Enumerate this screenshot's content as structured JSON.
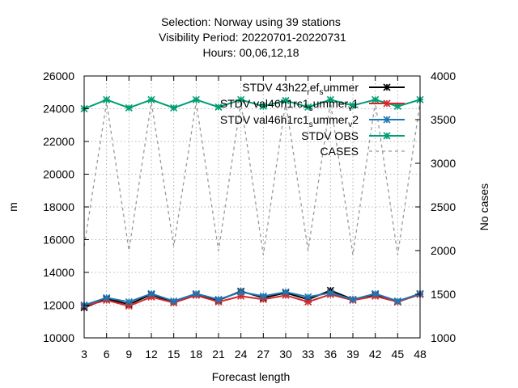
{
  "chart_data": {
    "type": "line",
    "title_lines": [
      "Selection: Norway using    39 stations",
      "Visibility   Period: 20220701-20220731",
      "Hours:  00,06,12,18"
    ],
    "xlabel": "Forecast length",
    "ylabel": "m",
    "y2label": "No cases",
    "xlim": [
      3,
      48
    ],
    "ylim": [
      10000,
      26000
    ],
    "y2lim": [
      1000,
      4000
    ],
    "x_ticks": [
      3,
      6,
      9,
      12,
      15,
      18,
      21,
      24,
      27,
      30,
      33,
      36,
      39,
      42,
      45,
      48
    ],
    "y_ticks": [
      10000,
      12000,
      14000,
      16000,
      18000,
      20000,
      22000,
      24000,
      26000
    ],
    "y2_ticks": [
      1000,
      1500,
      2000,
      2500,
      3000,
      3500,
      4000
    ],
    "grid": true,
    "legend_position": "top-right",
    "x": [
      3,
      6,
      9,
      12,
      15,
      18,
      21,
      24,
      27,
      30,
      33,
      36,
      39,
      42,
      45,
      48
    ],
    "series": [
      {
        "name": "STDV 43h22_ref_summer",
        "legend_main": "STDV 43h22",
        "legend_parts": [
          [
            "sub",
            "r"
          ],
          [
            "main",
            "ef"
          ],
          [
            "sub",
            "s"
          ],
          [
            "main",
            "ummer"
          ]
        ],
        "color": "#000000",
        "axis": "y1",
        "values": [
          11850,
          12400,
          12050,
          12650,
          12150,
          12650,
          12300,
          12850,
          12450,
          12750,
          12350,
          12900,
          12350,
          12650,
          12200,
          12700
        ]
      },
      {
        "name": "STDV val46h1rc1_summer_v1",
        "legend_main": "STDV val46h1rc1",
        "legend_parts": [
          [
            "sub",
            "s"
          ],
          [
            "main",
            "ummer"
          ],
          [
            "sub",
            "v"
          ],
          [
            "main",
            "1"
          ]
        ],
        "color": "#d62728",
        "axis": "y1",
        "values": [
          11950,
          12300,
          11950,
          12500,
          12150,
          12600,
          12200,
          12550,
          12350,
          12600,
          12200,
          12650,
          12300,
          12550,
          12200,
          12650
        ]
      },
      {
        "name": "STDV val46h1rc1_summer_v2",
        "legend_main": "STDV val46h1rc1",
        "legend_parts": [
          [
            "sub",
            "s"
          ],
          [
            "main",
            "ummer"
          ],
          [
            "sub",
            "v"
          ],
          [
            "main",
            "2"
          ]
        ],
        "color": "#1f77b4",
        "axis": "y1",
        "values": [
          12000,
          12450,
          12200,
          12700,
          12250,
          12700,
          12350,
          12800,
          12550,
          12800,
          12500,
          12750,
          12350,
          12700,
          12250,
          12700
        ]
      },
      {
        "name": "STDV OBS",
        "legend_main": "STDV OBS",
        "legend_parts": [],
        "color": "#009e73",
        "axis": "y1",
        "values": [
          24000,
          24550,
          24050,
          24550,
          24050,
          24550,
          24100,
          24550,
          24150,
          24500,
          24100,
          24550,
          24200,
          24550,
          24150,
          24550
        ]
      },
      {
        "name": "CASES",
        "legend_main": "CASES",
        "legend_parts": [],
        "color": "#999999",
        "axis": "y2",
        "dashed": true,
        "values": [
          2050,
          3700,
          2000,
          3700,
          2050,
          3700,
          2000,
          3700,
          1950,
          3700,
          2000,
          3700,
          1950,
          3700,
          1950,
          3700
        ]
      }
    ]
  }
}
